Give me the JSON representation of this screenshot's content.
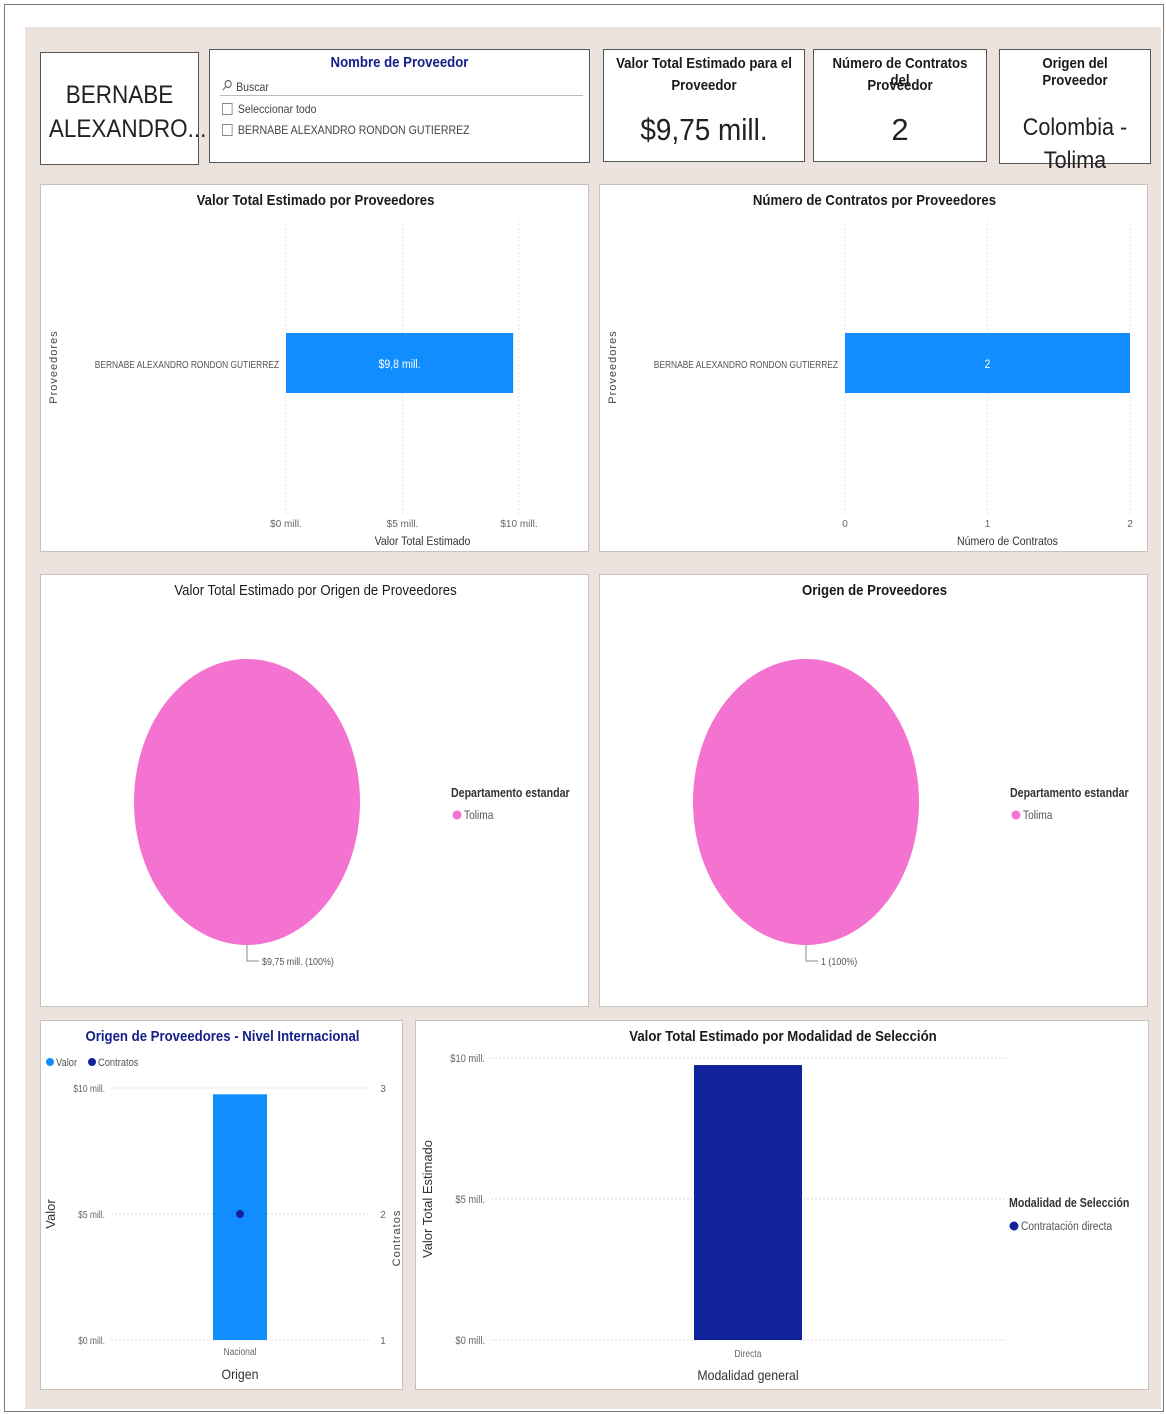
{
  "provider_card": {
    "line1": "BERNABE",
    "line2": "ALEXANDRO..."
  },
  "slicer": {
    "title": "Nombre de Proveedor",
    "search_placeholder": "Buscar",
    "select_all": "Seleccionar todo",
    "item": "BERNABE ALEXANDRO RONDON GUTIERREZ"
  },
  "kpi_value": {
    "title_line1": "Valor Total Estimado para el",
    "title_line2": "Proveedor",
    "value": "$9,75 mill."
  },
  "kpi_contracts": {
    "title_line1": "Número de Contratos del",
    "title_line2": "Proveedor",
    "value": "2"
  },
  "kpi_origin": {
    "title": "Origen del Proveedor",
    "line1": "Colombia -",
    "line2": "Tolima"
  },
  "colors": {
    "bar_blue": "#118dff",
    "navy": "#12239e",
    "pink": "#f472d0",
    "dot": "#12239e"
  },
  "chart_data": [
    {
      "type": "bar",
      "orientation": "horizontal",
      "title": "Valor Total Estimado por Proveedores",
      "ylabel": "Proveedores",
      "xlabel": "Valor Total Estimado",
      "categories": [
        "BERNABE ALEXANDRO RONDON GUTIERREZ"
      ],
      "values": [
        9.75
      ],
      "data_labels": [
        "$9,8 mill."
      ],
      "xlim": [
        0,
        10
      ],
      "ticks": [
        0,
        5,
        10
      ],
      "tick_labels": [
        "$0 mill.",
        "$5 mill.",
        "$10 mill."
      ],
      "grid": true
    },
    {
      "type": "bar",
      "orientation": "horizontal",
      "title": "Número de Contratos por Proveedores",
      "ylabel": "Proveedores",
      "xlabel": "Número de Contratos",
      "categories": [
        "BERNABE ALEXANDRO RONDON GUTIERREZ"
      ],
      "values": [
        2
      ],
      "data_labels": [
        "2"
      ],
      "xlim": [
        0,
        2
      ],
      "ticks": [
        0,
        1,
        2
      ],
      "tick_labels": [
        "0",
        "1",
        "2"
      ],
      "grid": true
    },
    {
      "type": "pie",
      "title": "Valor Total Estimado por Origen de Proveedores",
      "legend_title": "Departamento estandar",
      "legend": [
        "Tolima"
      ],
      "values": [
        9.75
      ],
      "data_labels": [
        "$9,75 mill. (100%)"
      ]
    },
    {
      "type": "pie",
      "title": "Origen de Proveedores",
      "legend_title": "Departamento estandar",
      "legend": [
        "Tolima"
      ],
      "values": [
        1
      ],
      "data_labels": [
        "1 (100%)"
      ]
    },
    {
      "type": "bar",
      "title": "Origen de Proveedores - Nivel Internacional",
      "categories": [
        "Nacional"
      ],
      "series": [
        {
          "name": "Valor",
          "values": [
            9.75
          ],
          "axis": "left"
        },
        {
          "name": "Contratos",
          "values": [
            2
          ],
          "axis": "right",
          "marker": "dot"
        }
      ],
      "xlabel": "Origen",
      "ylabel": "Valor",
      "y2label": "Contratos",
      "ylim": [
        0,
        10
      ],
      "y2lim": [
        1,
        3
      ],
      "yticks": [
        "$0 mill.",
        "$5 mill.",
        "$10 mill."
      ],
      "y2ticks": [
        "1",
        "2",
        "3"
      ],
      "legend": [
        "Valor",
        "Contratos"
      ],
      "grid": true
    },
    {
      "type": "bar",
      "title": "Valor Total Estimado por Modalidad de Selección",
      "categories": [
        "Directa"
      ],
      "values": [
        9.75
      ],
      "xlabel": "Modalidad general",
      "ylabel": "Valor Total Estimado",
      "ylim": [
        0,
        10
      ],
      "yticks": [
        "$0 mill.",
        "$5 mill.",
        "$10 mill."
      ],
      "legend_title": "Modalidad de Selección",
      "legend": [
        "Contratación directa"
      ],
      "grid": true
    }
  ]
}
